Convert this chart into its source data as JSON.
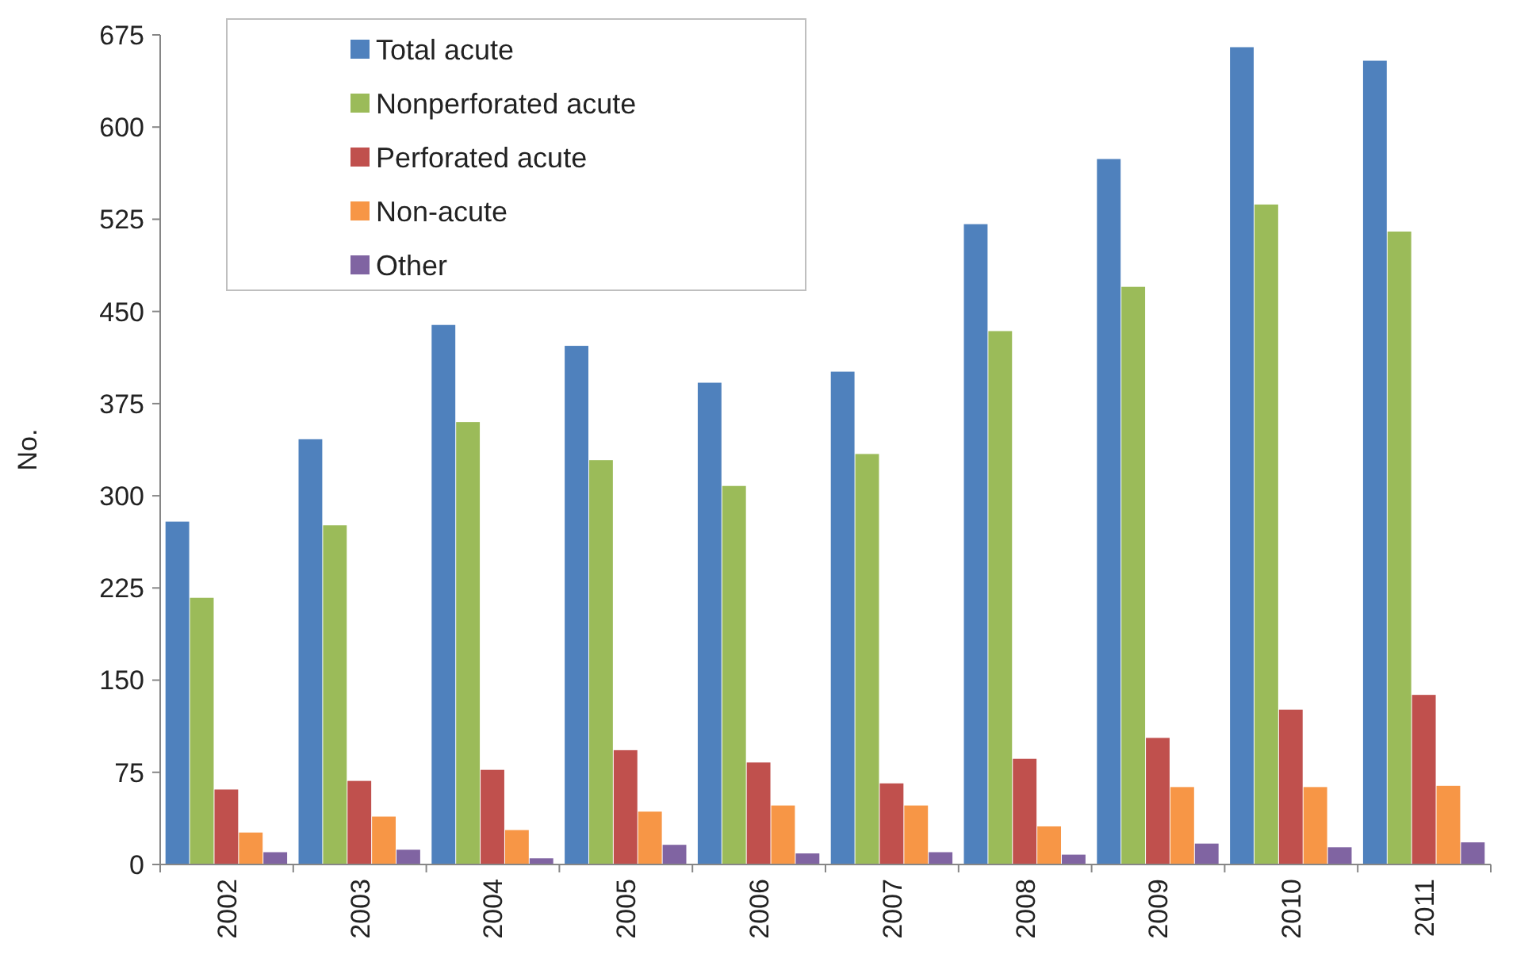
{
  "chart_data": {
    "type": "bar",
    "ylabel": "No.",
    "categories": [
      "2002",
      "2003",
      "2004",
      "2005",
      "2006",
      "2007",
      "2008",
      "2009",
      "2010",
      "2011"
    ],
    "series": [
      {
        "name": "Total acute",
        "color": "#4f81bd",
        "values": [
          279,
          346,
          439,
          422,
          392,
          401,
          521,
          574,
          665,
          654
        ]
      },
      {
        "name": "Nonperforated acute",
        "color": "#9bbb59",
        "values": [
          217,
          276,
          360,
          329,
          308,
          334,
          434,
          470,
          537,
          515
        ]
      },
      {
        "name": "Perforated acute",
        "color": "#c0504d",
        "values": [
          61,
          68,
          77,
          93,
          83,
          66,
          86,
          103,
          126,
          138
        ]
      },
      {
        "name": "Non-acute",
        "color": "#f79646",
        "values": [
          26,
          39,
          28,
          43,
          48,
          48,
          31,
          63,
          63,
          64
        ]
      },
      {
        "name": "Other",
        "color": "#8064a2",
        "values": [
          10,
          12,
          5,
          16,
          9,
          10,
          8,
          17,
          14,
          18
        ]
      }
    ],
    "ylim": [
      0,
      675
    ],
    "yticks": [
      0,
      75,
      150,
      225,
      300,
      375,
      450,
      525,
      600,
      675
    ],
    "grid": false,
    "legend": "top left"
  }
}
